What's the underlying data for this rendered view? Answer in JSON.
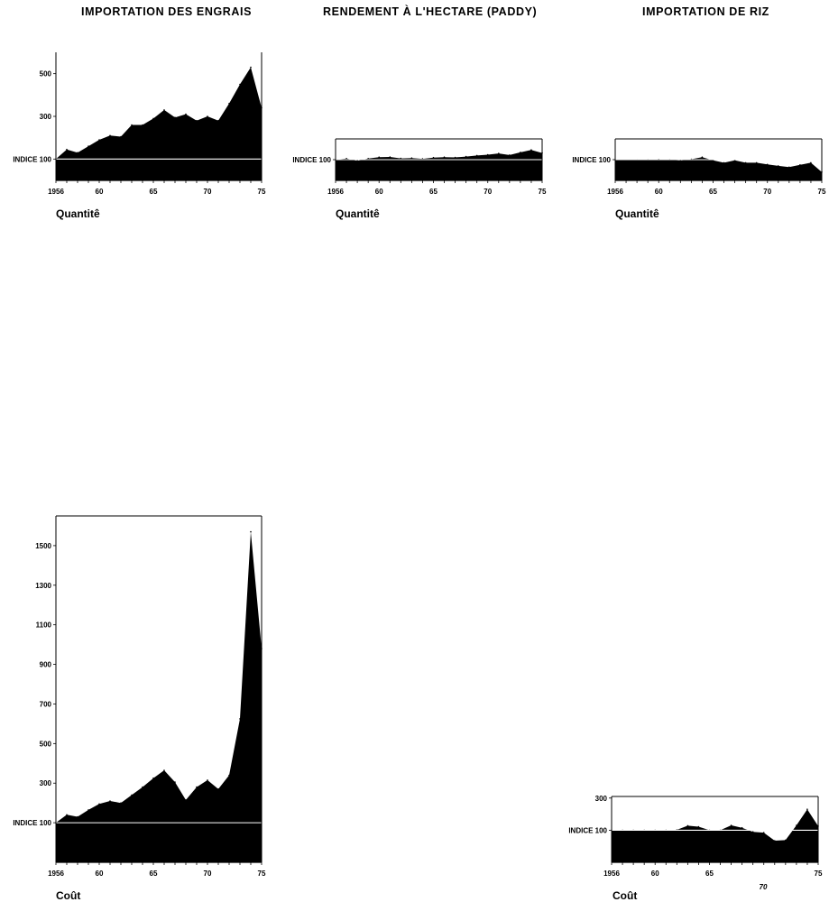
{
  "headers": {
    "engrais": "IMPORTATION DES ENGRAIS",
    "paddy": "RENDEMENT À L'HECTARE (PADDY)",
    "riz": "IMPORTATION DE RIZ"
  },
  "chart_data": [
    {
      "id": "engrais-quantite",
      "type": "area",
      "caption": "Quantitê",
      "x_start": 1956,
      "x_end": 1975,
      "x_ticks": [
        {
          "v": 1956,
          "l": "1956"
        },
        {
          "v": 1960,
          "l": "60"
        },
        {
          "v": 1965,
          "l": "65"
        },
        {
          "v": 1970,
          "l": "70"
        },
        {
          "v": 1975,
          "l": "75"
        }
      ],
      "y_ticks": [
        {
          "v": 100,
          "l": "INDICE 100"
        },
        {
          "v": 300,
          "l": "300"
        },
        {
          "v": 500,
          "l": "500"
        }
      ],
      "ylim": [
        0,
        600
      ],
      "baseline": 100,
      "x": [
        1956,
        1957,
        1958,
        1959,
        1960,
        1961,
        1962,
        1963,
        1964,
        1965,
        1966,
        1967,
        1968,
        1969,
        1970,
        1971,
        1972,
        1973,
        1974,
        1975
      ],
      "values": [
        100,
        145,
        130,
        160,
        190,
        210,
        205,
        260,
        260,
        290,
        330,
        295,
        310,
        280,
        300,
        280,
        360,
        450,
        530,
        340
      ]
    },
    {
      "id": "paddy-quantite",
      "type": "area",
      "caption": "Quantitê",
      "x_start": 1956,
      "x_end": 1975,
      "x_ticks": [
        {
          "v": 1956,
          "l": "1956"
        },
        {
          "v": 1960,
          "l": "60"
        },
        {
          "v": 1965,
          "l": "65"
        },
        {
          "v": 1970,
          "l": "70"
        },
        {
          "v": 1975,
          "l": "75"
        }
      ],
      "y_ticks": [
        {
          "v": 100,
          "l": "INDICE 100"
        }
      ],
      "ylim": [
        0,
        200
      ],
      "baseline": 100,
      "x": [
        1956,
        1957,
        1958,
        1959,
        1960,
        1961,
        1962,
        1963,
        1964,
        1965,
        1966,
        1967,
        1968,
        1969,
        1970,
        1971,
        1972,
        1973,
        1974,
        1975
      ],
      "values": [
        100,
        105,
        95,
        105,
        112,
        113,
        106,
        108,
        104,
        110,
        112,
        111,
        115,
        120,
        124,
        130,
        122,
        135,
        147,
        132
      ]
    },
    {
      "id": "riz-quantite",
      "type": "area",
      "caption": "Quantitê",
      "x_start": 1956,
      "x_end": 1975,
      "x_ticks": [
        {
          "v": 1956,
          "l": "1956"
        },
        {
          "v": 1960,
          "l": "60"
        },
        {
          "v": 1965,
          "l": "65"
        },
        {
          "v": 1970,
          "l": "70"
        },
        {
          "v": 1975,
          "l": "75"
        }
      ],
      "y_ticks": [
        {
          "v": 100,
          "l": "INDICE 100"
        }
      ],
      "ylim": [
        0,
        200
      ],
      "baseline": 100,
      "x": [
        1956,
        1957,
        1958,
        1959,
        1960,
        1961,
        1962,
        1963,
        1964,
        1965,
        1966,
        1967,
        1968,
        1969,
        1970,
        1971,
        1972,
        1973,
        1974,
        1975
      ],
      "values": [
        100,
        98,
        99,
        100,
        101,
        100,
        96,
        102,
        112,
        97,
        85,
        97,
        85,
        85,
        77,
        70,
        64,
        75,
        85,
        40
      ]
    },
    {
      "id": "engrais-cout",
      "type": "area",
      "caption": "Coût",
      "x_start": 1956,
      "x_end": 1975,
      "x_ticks": [
        {
          "v": 1956,
          "l": "1956"
        },
        {
          "v": 1960,
          "l": "60"
        },
        {
          "v": 1965,
          "l": "65"
        },
        {
          "v": 1970,
          "l": "70"
        },
        {
          "v": 1975,
          "l": "75"
        }
      ],
      "y_ticks": [
        {
          "v": 100,
          "l": "INDICE 100"
        },
        {
          "v": 300,
          "l": "300"
        },
        {
          "v": 500,
          "l": "500"
        },
        {
          "v": 700,
          "l": "700"
        },
        {
          "v": 900,
          "l": "900"
        },
        {
          "v": 1100,
          "l": "1100"
        },
        {
          "v": 1300,
          "l": "1300"
        },
        {
          "v": 1500,
          "l": "1500"
        }
      ],
      "ylim": [
        -100,
        1650
      ],
      "baseline": 100,
      "x": [
        1956,
        1957,
        1958,
        1959,
        1960,
        1961,
        1962,
        1963,
        1964,
        1965,
        1966,
        1967,
        1968,
        1969,
        1970,
        1971,
        1972,
        1973,
        1974,
        1975
      ],
      "values": [
        100,
        140,
        130,
        165,
        195,
        210,
        200,
        240,
        280,
        325,
        365,
        305,
        215,
        280,
        315,
        270,
        340,
        625,
        1570,
        980
      ]
    },
    {
      "id": "riz-cout",
      "type": "area",
      "caption": "Coût",
      "x_start": 1956,
      "x_end": 1975,
      "x_ticks": [
        {
          "v": 1956,
          "l": "1956"
        },
        {
          "v": 1960,
          "l": "60"
        },
        {
          "v": 1965,
          "l": "65"
        },
        {
          "v": 1975,
          "l": "75"
        }
      ],
      "extra_label": "70",
      "y_ticks": [
        {
          "v": 100,
          "l": "INDICE 100"
        },
        {
          "v": 300,
          "l": "300"
        }
      ],
      "ylim": [
        -100,
        310
      ],
      "baseline": 100,
      "x": [
        1956,
        1957,
        1958,
        1959,
        1960,
        1961,
        1962,
        1963,
        1964,
        1965,
        1966,
        1967,
        1968,
        1969,
        1970,
        1971,
        1972,
        1973,
        1974,
        1975
      ],
      "values": [
        100,
        100,
        100,
        100,
        100,
        100,
        102,
        128,
        122,
        100,
        100,
        130,
        115,
        90,
        85,
        35,
        38,
        130,
        230,
        125
      ]
    }
  ]
}
